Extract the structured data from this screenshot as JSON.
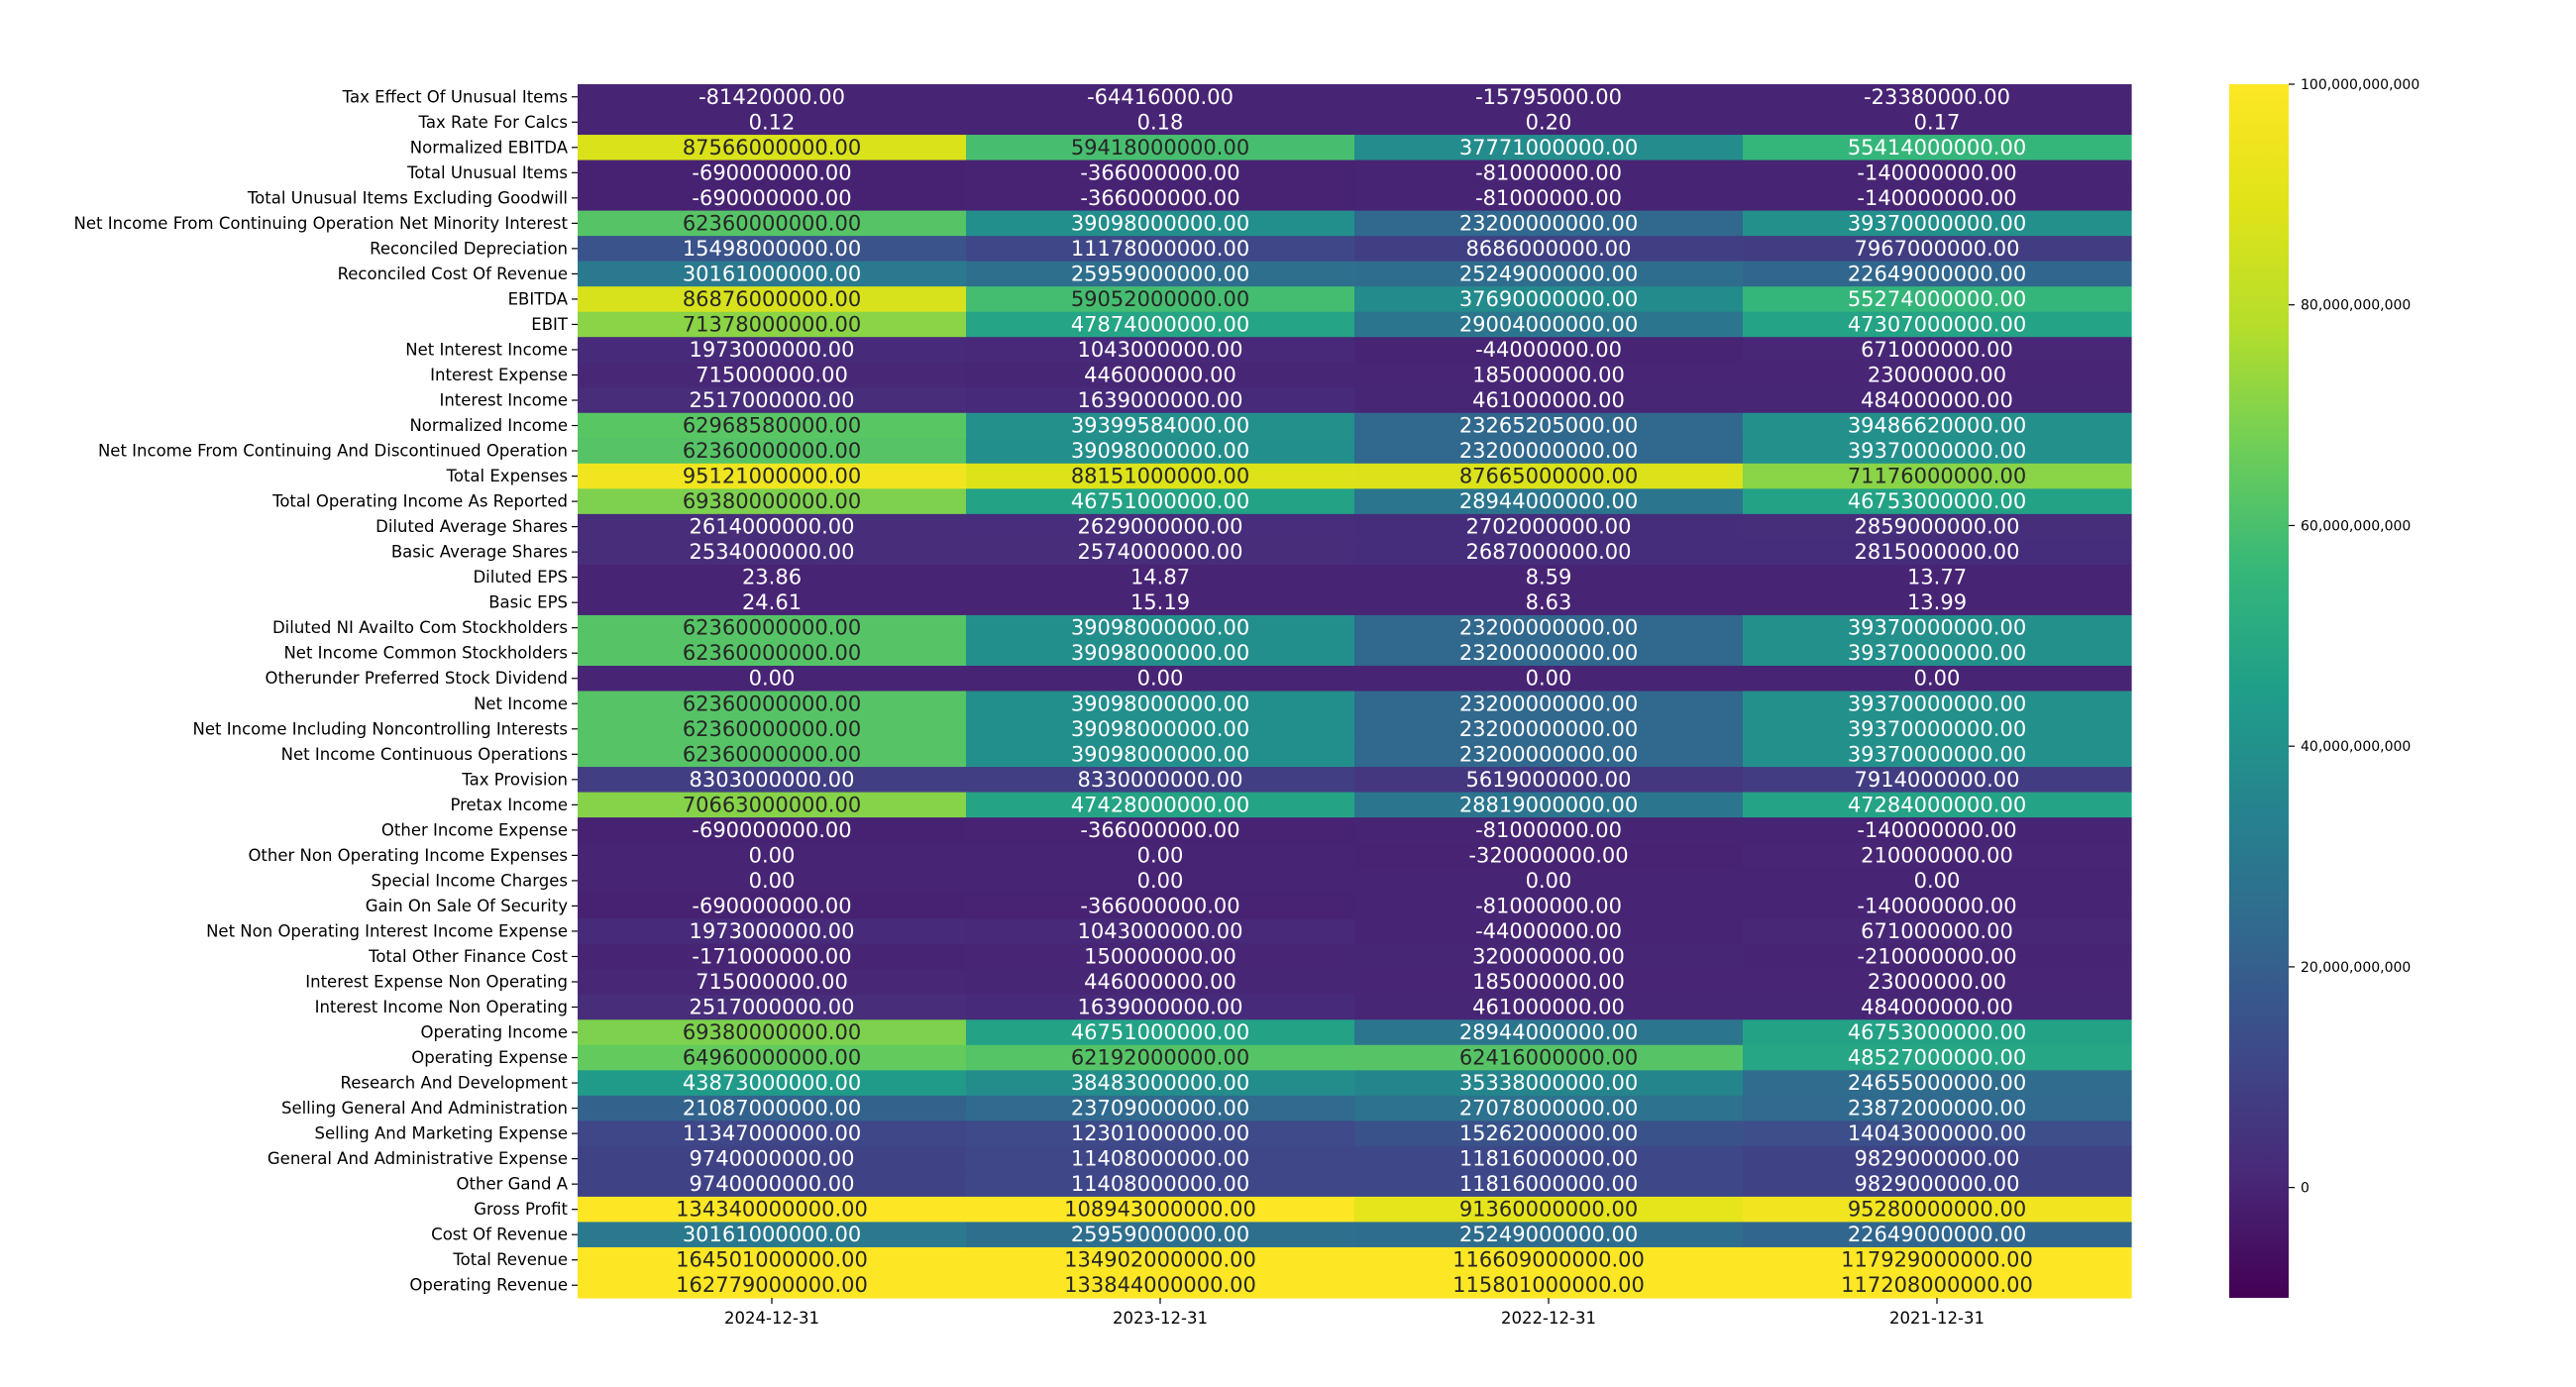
{
  "chart_data": {
    "type": "heatmap",
    "title": "",
    "xlabel": "",
    "ylabel": "",
    "columns": [
      "2024-12-31",
      "2023-12-31",
      "2022-12-31",
      "2021-12-31"
    ],
    "colormap": "viridis",
    "vmin": -10000000000,
    "vmax": 100000000000,
    "colorbar": {
      "ticks": [
        0,
        20000000000,
        40000000000,
        60000000000,
        80000000000,
        100000000000
      ],
      "tick_labels": [
        "0",
        "20,000,000,000",
        "40,000,000,000",
        "60,000,000,000",
        "80,000,000,000",
        "100,000,000,000"
      ]
    },
    "rows": [
      {
        "label": "Tax Effect Of Unusual Items",
        "values": [
          -81420000,
          -64416000,
          -15795000,
          -23380000
        ],
        "texts": [
          "-81420000.00",
          "-64416000.00",
          "-15795000.00",
          "-23380000.00"
        ]
      },
      {
        "label": "Tax Rate For Calcs",
        "values": [
          0.12,
          0.18,
          0.2,
          0.17
        ],
        "texts": [
          "0.12",
          "0.18",
          "0.20",
          "0.17"
        ]
      },
      {
        "label": "Normalized EBITDA",
        "values": [
          87566000000,
          59418000000,
          37771000000,
          55414000000
        ],
        "texts": [
          "87566000000.00",
          "59418000000.00",
          "37771000000.00",
          "55414000000.00"
        ]
      },
      {
        "label": "Total Unusual Items",
        "values": [
          -690000000,
          -366000000,
          -81000000,
          -140000000
        ],
        "texts": [
          "-690000000.00",
          "-366000000.00",
          "-81000000.00",
          "-140000000.00"
        ]
      },
      {
        "label": "Total Unusual Items Excluding Goodwill",
        "values": [
          -690000000,
          -366000000,
          -81000000,
          -140000000
        ],
        "texts": [
          "-690000000.00",
          "-366000000.00",
          "-81000000.00",
          "-140000000.00"
        ]
      },
      {
        "label": "Net Income From Continuing Operation Net Minority Interest",
        "values": [
          62360000000,
          39098000000,
          23200000000,
          39370000000
        ],
        "texts": [
          "62360000000.00",
          "39098000000.00",
          "23200000000.00",
          "39370000000.00"
        ]
      },
      {
        "label": "Reconciled Depreciation",
        "values": [
          15498000000,
          11178000000,
          8686000000,
          7967000000
        ],
        "texts": [
          "15498000000.00",
          "11178000000.00",
          "8686000000.00",
          "7967000000.00"
        ]
      },
      {
        "label": "Reconciled Cost Of Revenue",
        "values": [
          30161000000,
          25959000000,
          25249000000,
          22649000000
        ],
        "texts": [
          "30161000000.00",
          "25959000000.00",
          "25249000000.00",
          "22649000000.00"
        ]
      },
      {
        "label": "EBITDA",
        "values": [
          86876000000,
          59052000000,
          37690000000,
          55274000000
        ],
        "texts": [
          "86876000000.00",
          "59052000000.00",
          "37690000000.00",
          "55274000000.00"
        ]
      },
      {
        "label": "EBIT",
        "values": [
          71378000000,
          47874000000,
          29004000000,
          47307000000
        ],
        "texts": [
          "71378000000.00",
          "47874000000.00",
          "29004000000.00",
          "47307000000.00"
        ]
      },
      {
        "label": "Net Interest Income",
        "values": [
          1973000000,
          1043000000,
          -44000000,
          671000000
        ],
        "texts": [
          "1973000000.00",
          "1043000000.00",
          "-44000000.00",
          "671000000.00"
        ]
      },
      {
        "label": "Interest Expense",
        "values": [
          715000000,
          446000000,
          185000000,
          23000000
        ],
        "texts": [
          "715000000.00",
          "446000000.00",
          "185000000.00",
          "23000000.00"
        ]
      },
      {
        "label": "Interest Income",
        "values": [
          2517000000,
          1639000000,
          461000000,
          484000000
        ],
        "texts": [
          "2517000000.00",
          "1639000000.00",
          "461000000.00",
          "484000000.00"
        ]
      },
      {
        "label": "Normalized Income",
        "values": [
          62968580000,
          39399584000,
          23265205000,
          39486620000
        ],
        "texts": [
          "62968580000.00",
          "39399584000.00",
          "23265205000.00",
          "39486620000.00"
        ]
      },
      {
        "label": "Net Income From Continuing And Discontinued Operation",
        "values": [
          62360000000,
          39098000000,
          23200000000,
          39370000000
        ],
        "texts": [
          "62360000000.00",
          "39098000000.00",
          "23200000000.00",
          "39370000000.00"
        ]
      },
      {
        "label": "Total Expenses",
        "values": [
          95121000000,
          88151000000,
          87665000000,
          71176000000
        ],
        "texts": [
          "95121000000.00",
          "88151000000.00",
          "87665000000.00",
          "71176000000.00"
        ]
      },
      {
        "label": "Total Operating Income As Reported",
        "values": [
          69380000000,
          46751000000,
          28944000000,
          46753000000
        ],
        "texts": [
          "69380000000.00",
          "46751000000.00",
          "28944000000.00",
          "46753000000.00"
        ]
      },
      {
        "label": "Diluted Average Shares",
        "values": [
          2614000000,
          2629000000,
          2702000000,
          2859000000
        ],
        "texts": [
          "2614000000.00",
          "2629000000.00",
          "2702000000.00",
          "2859000000.00"
        ]
      },
      {
        "label": "Basic Average Shares",
        "values": [
          2534000000,
          2574000000,
          2687000000,
          2815000000
        ],
        "texts": [
          "2534000000.00",
          "2574000000.00",
          "2687000000.00",
          "2815000000.00"
        ]
      },
      {
        "label": "Diluted EPS",
        "values": [
          23.86,
          14.87,
          8.59,
          13.77
        ],
        "texts": [
          "23.86",
          "14.87",
          "8.59",
          "13.77"
        ]
      },
      {
        "label": "Basic EPS",
        "values": [
          24.61,
          15.19,
          8.63,
          13.99
        ],
        "texts": [
          "24.61",
          "15.19",
          "8.63",
          "13.99"
        ]
      },
      {
        "label": "Diluted NI Availto Com Stockholders",
        "values": [
          62360000000,
          39098000000,
          23200000000,
          39370000000
        ],
        "texts": [
          "62360000000.00",
          "39098000000.00",
          "23200000000.00",
          "39370000000.00"
        ]
      },
      {
        "label": "Net Income Common Stockholders",
        "values": [
          62360000000,
          39098000000,
          23200000000,
          39370000000
        ],
        "texts": [
          "62360000000.00",
          "39098000000.00",
          "23200000000.00",
          "39370000000.00"
        ]
      },
      {
        "label": "Otherunder Preferred Stock Dividend",
        "values": [
          0,
          0,
          0,
          0
        ],
        "texts": [
          "0.00",
          "0.00",
          "0.00",
          "0.00"
        ]
      },
      {
        "label": "Net Income",
        "values": [
          62360000000,
          39098000000,
          23200000000,
          39370000000
        ],
        "texts": [
          "62360000000.00",
          "39098000000.00",
          "23200000000.00",
          "39370000000.00"
        ]
      },
      {
        "label": "Net Income Including Noncontrolling Interests",
        "values": [
          62360000000,
          39098000000,
          23200000000,
          39370000000
        ],
        "texts": [
          "62360000000.00",
          "39098000000.00",
          "23200000000.00",
          "39370000000.00"
        ]
      },
      {
        "label": "Net Income Continuous Operations",
        "values": [
          62360000000,
          39098000000,
          23200000000,
          39370000000
        ],
        "texts": [
          "62360000000.00",
          "39098000000.00",
          "23200000000.00",
          "39370000000.00"
        ]
      },
      {
        "label": "Tax Provision",
        "values": [
          8303000000,
          8330000000,
          5619000000,
          7914000000
        ],
        "texts": [
          "8303000000.00",
          "8330000000.00",
          "5619000000.00",
          "7914000000.00"
        ]
      },
      {
        "label": "Pretax Income",
        "values": [
          70663000000,
          47428000000,
          28819000000,
          47284000000
        ],
        "texts": [
          "70663000000.00",
          "47428000000.00",
          "28819000000.00",
          "47284000000.00"
        ]
      },
      {
        "label": "Other Income Expense",
        "values": [
          -690000000,
          -366000000,
          -81000000,
          -140000000
        ],
        "texts": [
          "-690000000.00",
          "-366000000.00",
          "-81000000.00",
          "-140000000.00"
        ]
      },
      {
        "label": "Other Non Operating Income Expenses",
        "values": [
          0,
          0,
          -320000000,
          210000000
        ],
        "texts": [
          "0.00",
          "0.00",
          "-320000000.00",
          "210000000.00"
        ]
      },
      {
        "label": "Special Income Charges",
        "values": [
          0,
          0,
          0,
          0
        ],
        "texts": [
          "0.00",
          "0.00",
          "0.00",
          "0.00"
        ]
      },
      {
        "label": "Gain On Sale Of Security",
        "values": [
          -690000000,
          -366000000,
          -81000000,
          -140000000
        ],
        "texts": [
          "-690000000.00",
          "-366000000.00",
          "-81000000.00",
          "-140000000.00"
        ]
      },
      {
        "label": "Net Non Operating Interest Income Expense",
        "values": [
          1973000000,
          1043000000,
          -44000000,
          671000000
        ],
        "texts": [
          "1973000000.00",
          "1043000000.00",
          "-44000000.00",
          "671000000.00"
        ]
      },
      {
        "label": "Total Other Finance Cost",
        "values": [
          -171000000,
          150000000,
          320000000,
          -210000000
        ],
        "texts": [
          "-171000000.00",
          "150000000.00",
          "320000000.00",
          "-210000000.00"
        ]
      },
      {
        "label": "Interest Expense Non Operating",
        "values": [
          715000000,
          446000000,
          185000000,
          23000000
        ],
        "texts": [
          "715000000.00",
          "446000000.00",
          "185000000.00",
          "23000000.00"
        ]
      },
      {
        "label": "Interest Income Non Operating",
        "values": [
          2517000000,
          1639000000,
          461000000,
          484000000
        ],
        "texts": [
          "2517000000.00",
          "1639000000.00",
          "461000000.00",
          "484000000.00"
        ]
      },
      {
        "label": "Operating Income",
        "values": [
          69380000000,
          46751000000,
          28944000000,
          46753000000
        ],
        "texts": [
          "69380000000.00",
          "46751000000.00",
          "28944000000.00",
          "46753000000.00"
        ]
      },
      {
        "label": "Operating Expense",
        "values": [
          64960000000,
          62192000000,
          62416000000,
          48527000000
        ],
        "texts": [
          "64960000000.00",
          "62192000000.00",
          "62416000000.00",
          "48527000000.00"
        ]
      },
      {
        "label": "Research And Development",
        "values": [
          43873000000,
          38483000000,
          35338000000,
          24655000000
        ],
        "texts": [
          "43873000000.00",
          "38483000000.00",
          "35338000000.00",
          "24655000000.00"
        ]
      },
      {
        "label": "Selling General And Administration",
        "values": [
          21087000000,
          23709000000,
          27078000000,
          23872000000
        ],
        "texts": [
          "21087000000.00",
          "23709000000.00",
          "27078000000.00",
          "23872000000.00"
        ]
      },
      {
        "label": "Selling And Marketing Expense",
        "values": [
          11347000000,
          12301000000,
          15262000000,
          14043000000
        ],
        "texts": [
          "11347000000.00",
          "12301000000.00",
          "15262000000.00",
          "14043000000.00"
        ]
      },
      {
        "label": "General And Administrative Expense",
        "values": [
          9740000000,
          11408000000,
          11816000000,
          9829000000
        ],
        "texts": [
          "9740000000.00",
          "11408000000.00",
          "11816000000.00",
          "9829000000.00"
        ]
      },
      {
        "label": "Other Gand A",
        "values": [
          9740000000,
          11408000000,
          11816000000,
          9829000000
        ],
        "texts": [
          "9740000000.00",
          "11408000000.00",
          "11816000000.00",
          "9829000000.00"
        ]
      },
      {
        "label": "Gross Profit",
        "values": [
          134340000000,
          108943000000,
          91360000000,
          95280000000
        ],
        "texts": [
          "134340000000.00",
          "108943000000.00",
          "91360000000.00",
          "95280000000.00"
        ]
      },
      {
        "label": "Cost Of Revenue",
        "values": [
          30161000000,
          25959000000,
          25249000000,
          22649000000
        ],
        "texts": [
          "30161000000.00",
          "25959000000.00",
          "25249000000.00",
          "22649000000.00"
        ]
      },
      {
        "label": "Total Revenue",
        "values": [
          164501000000,
          134902000000,
          116609000000,
          117929000000
        ],
        "texts": [
          "164501000000.00",
          "134902000000.00",
          "116609000000.00",
          "117929000000.00"
        ]
      },
      {
        "label": "Operating Revenue",
        "values": [
          162779000000,
          133844000000,
          115801000000,
          117208000000
        ],
        "texts": [
          "162779000000.00",
          "133844000000.00",
          "115801000000.00",
          "117208000000.00"
        ]
      }
    ]
  }
}
